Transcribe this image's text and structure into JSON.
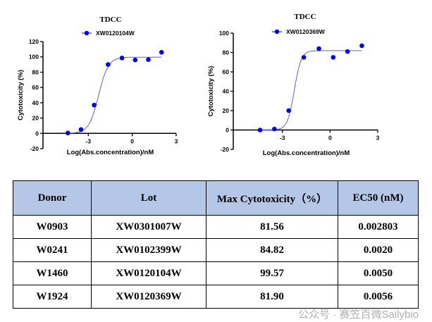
{
  "chart_data": [
    {
      "type": "scatter",
      "title": "TDCC",
      "legend": "XW0120104W",
      "legend_position": "top",
      "xlabel": "Log(Abs.concentration)/nM",
      "ylabel": "Cytotoxicity (%)",
      "xlim": [
        -6,
        3
      ],
      "ylim": [
        -20,
        120
      ],
      "xticks": [
        -3,
        0,
        3
      ],
      "yticks": [
        -20,
        0,
        20,
        40,
        60,
        80,
        100,
        120
      ],
      "x": [
        -4.4,
        -3.5,
        -2.6,
        -1.65,
        -0.7,
        0.2,
        1.1,
        2.0
      ],
      "y": [
        0.5,
        5,
        37,
        90,
        98.5,
        96,
        96.5,
        106
      ],
      "fit": {
        "bottom": 0,
        "top": 99.6,
        "logec50": -2.3,
        "hill": 1.3
      },
      "color": "#0000ff"
    },
    {
      "type": "scatter",
      "title": "TDCC",
      "legend": "XW0120369W",
      "legend_position": "top",
      "xlabel": "Log(Abs.concentration)/nM",
      "ylabel": "Cytotoxicity (%)",
      "xlim": [
        -6,
        3
      ],
      "ylim": [
        -20,
        100
      ],
      "xticks": [
        -3,
        0,
        3
      ],
      "yticks": [
        -20,
        0,
        20,
        40,
        60,
        80,
        100
      ],
      "x": [
        -4.4,
        -3.5,
        -2.6,
        -1.65,
        -0.7,
        0.2,
        1.1,
        2.0
      ],
      "y": [
        0,
        1,
        20,
        75,
        84,
        75,
        81,
        87
      ],
      "fit": {
        "bottom": 0,
        "top": 81.9,
        "logec50": -2.25,
        "hill": 2.0
      },
      "color": "#0000ff"
    }
  ],
  "table": {
    "headers": [
      "Donor",
      "Lot",
      "Max Cytotoxicity（%）",
      "EC50 (nM)"
    ],
    "rows": [
      [
        "W0903",
        "XW0301007W",
        "81.56",
        "0.002803"
      ],
      [
        "W0241",
        "XW0102399W",
        "84.82",
        "0.0020"
      ],
      [
        "W1460",
        "XW0120104W",
        "99.57",
        "0.0050"
      ],
      [
        "W1924",
        "XW0120369W",
        "81.90",
        "0.0056"
      ]
    ]
  },
  "watermark": "公众号 · 赛笠百微Sailybio"
}
